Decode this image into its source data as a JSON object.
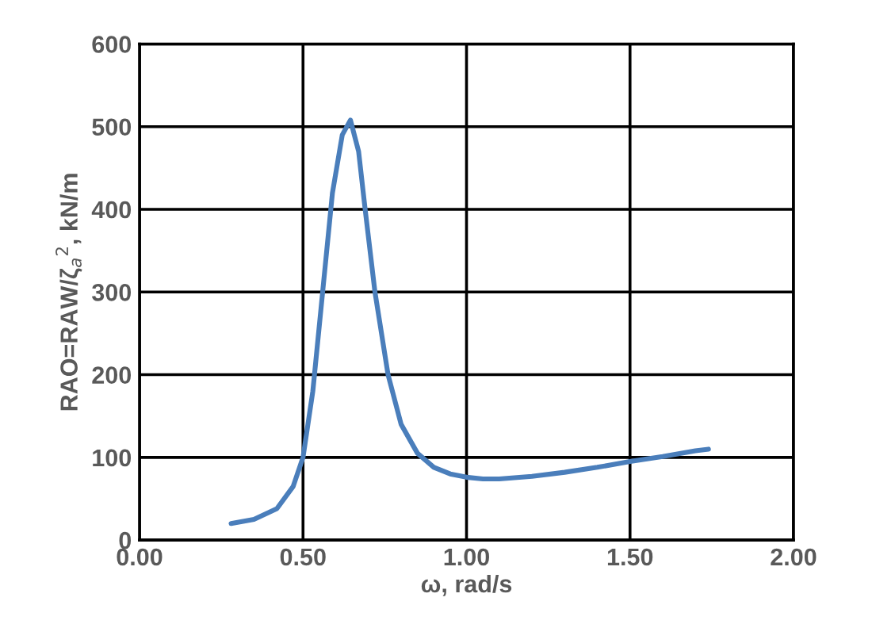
{
  "chart_data": {
    "type": "line",
    "xlabel": "ω, rad/s",
    "ylabel": "RAO=RAW/ζ$_{a}$$^{2}$, kN/m",
    "xlim": [
      0,
      2
    ],
    "ylim": [
      0,
      600
    ],
    "xticks": [
      {
        "value": 0,
        "label": "0.00"
      },
      {
        "value": 0.5,
        "label": "0.50"
      },
      {
        "value": 1,
        "label": "1.00"
      },
      {
        "value": 1.5,
        "label": "1.50"
      },
      {
        "value": 2,
        "label": "2.00"
      }
    ],
    "yticks": [
      0,
      100,
      200,
      300,
      400,
      500,
      600
    ],
    "grid": true,
    "marker": "none",
    "line_style": "solid",
    "series": [
      {
        "color": "#4a7ebb",
        "x": [
          0.28,
          0.35,
          0.42,
          0.47,
          0.5,
          0.53,
          0.56,
          0.59,
          0.62,
          0.645,
          0.67,
          0.69,
          0.72,
          0.76,
          0.8,
          0.85,
          0.9,
          0.95,
          1.0,
          1.05,
          1.1,
          1.2,
          1.3,
          1.4,
          1.5,
          1.6,
          1.7,
          1.74
        ],
        "values": [
          20,
          25,
          38,
          65,
          100,
          180,
          300,
          420,
          490,
          508,
          470,
          400,
          300,
          200,
          140,
          105,
          88,
          80,
          76,
          74,
          74,
          77,
          82,
          88,
          95,
          101,
          108,
          110
        ]
      }
    ]
  }
}
